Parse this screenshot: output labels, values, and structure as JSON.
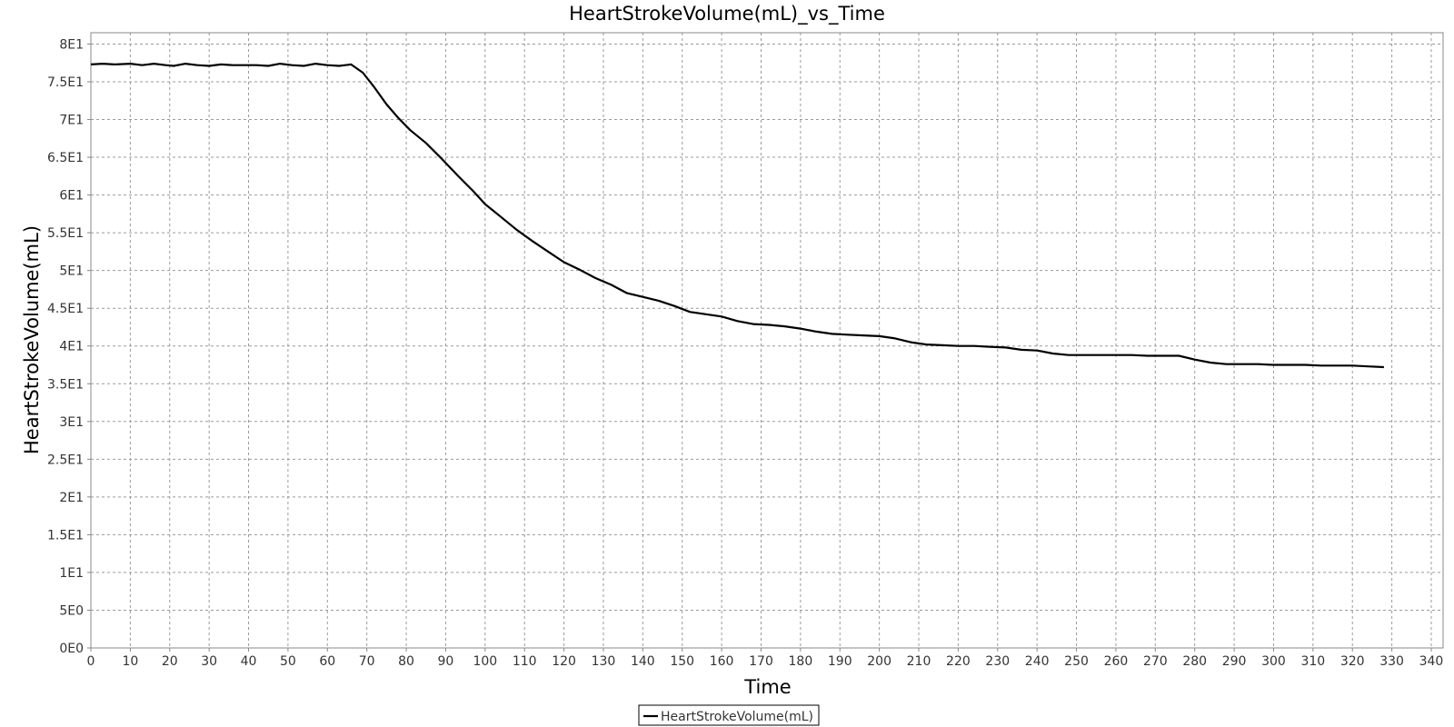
{
  "chart_data": {
    "type": "line",
    "title": "HeartStrokeVolume(mL)_vs_Time",
    "xlabel": "Time",
    "ylabel": "HeartStrokeVolume(mL)",
    "xlim": [
      0,
      343
    ],
    "ylim": [
      0,
      81.5
    ],
    "x_ticks": [
      0,
      10,
      20,
      30,
      40,
      50,
      60,
      70,
      80,
      90,
      100,
      110,
      120,
      130,
      140,
      150,
      160,
      170,
      180,
      190,
      200,
      210,
      220,
      230,
      240,
      250,
      260,
      270,
      280,
      290,
      300,
      310,
      320,
      330,
      340
    ],
    "y_ticks": [
      {
        "value": 0,
        "label": "0E0"
      },
      {
        "value": 5,
        "label": "5E0"
      },
      {
        "value": 10,
        "label": "1E1"
      },
      {
        "value": 15,
        "label": "1.5E1"
      },
      {
        "value": 20,
        "label": "2E1"
      },
      {
        "value": 25,
        "label": "2.5E1"
      },
      {
        "value": 30,
        "label": "3E1"
      },
      {
        "value": 35,
        "label": "3.5E1"
      },
      {
        "value": 40,
        "label": "4E1"
      },
      {
        "value": 45,
        "label": "4.5E1"
      },
      {
        "value": 50,
        "label": "5E1"
      },
      {
        "value": 55,
        "label": "5.5E1"
      },
      {
        "value": 60,
        "label": "6E1"
      },
      {
        "value": 65,
        "label": "6.5E1"
      },
      {
        "value": 70,
        "label": "7E1"
      },
      {
        "value": 75,
        "label": "7.5E1"
      },
      {
        "value": 80,
        "label": "8E1"
      }
    ],
    "grid": true,
    "legend_position": "bottom-center",
    "series": [
      {
        "name": "HeartStrokeVolume(mL)",
        "color": "#000000",
        "x": [
          0,
          3,
          6,
          10,
          13,
          16,
          19,
          21,
          24,
          27,
          30,
          33,
          36,
          39,
          42,
          45,
          48,
          51,
          54,
          57,
          60,
          63,
          66,
          69,
          72,
          75,
          78,
          81,
          85,
          89,
          93,
          97,
          100,
          104,
          108,
          112,
          116,
          120,
          124,
          128,
          132,
          136,
          140,
          144,
          148,
          152,
          156,
          160,
          164,
          168,
          172,
          176,
          180,
          184,
          188,
          192,
          196,
          200,
          204,
          208,
          212,
          216,
          220,
          224,
          228,
          232,
          236,
          240,
          244,
          248,
          252,
          256,
          260,
          264,
          268,
          272,
          276,
          280,
          284,
          288,
          292,
          296,
          300,
          304,
          308,
          312,
          316,
          320,
          324,
          328
        ],
        "y": [
          77.3,
          77.4,
          77.3,
          77.4,
          77.2,
          77.4,
          77.2,
          77.1,
          77.4,
          77.2,
          77.1,
          77.3,
          77.2,
          77.2,
          77.2,
          77.1,
          77.4,
          77.2,
          77.1,
          77.4,
          77.2,
          77.1,
          77.3,
          76.2,
          74.2,
          72.0,
          70.2,
          68.6,
          66.9,
          64.8,
          62.6,
          60.5,
          58.8,
          57.1,
          55.4,
          53.9,
          52.5,
          51.1,
          50.1,
          49.0,
          48.1,
          47.0,
          46.5,
          46.0,
          45.3,
          44.5,
          44.2,
          43.9,
          43.3,
          42.9,
          42.8,
          42.6,
          42.3,
          41.9,
          41.6,
          41.5,
          41.4,
          41.3,
          41.0,
          40.5,
          40.2,
          40.1,
          40.0,
          40.0,
          39.9,
          39.8,
          39.5,
          39.4,
          39.0,
          38.8,
          38.8,
          38.8,
          38.8,
          38.8,
          38.7,
          38.7,
          38.7,
          38.2,
          37.8,
          37.6,
          37.6,
          37.6,
          37.5,
          37.5,
          37.5,
          37.4,
          37.4,
          37.4,
          37.3,
          37.2
        ]
      }
    ]
  }
}
